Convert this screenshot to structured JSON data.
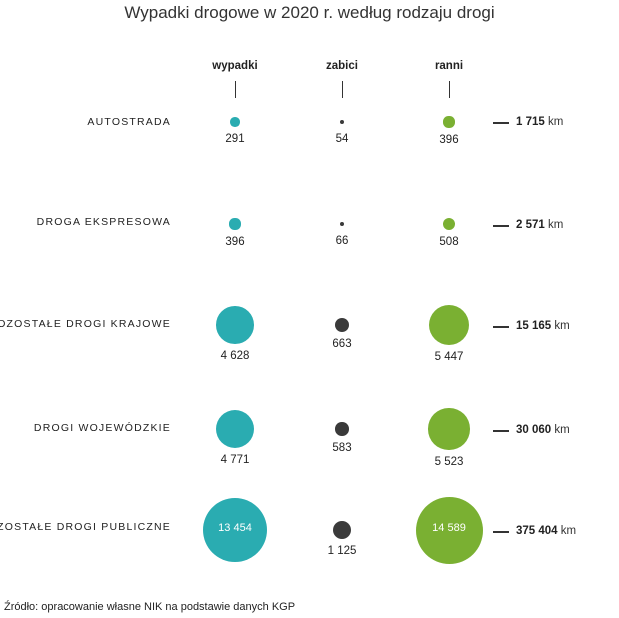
{
  "title": "Wypadki drogowe w 2020 r. według rodzaju drogi",
  "source": "Źródło: opracowanie własne NIK na podstawie danych KGP",
  "colors": {
    "wypadki": "#2aacb1",
    "zabici": "#3a3a3a",
    "ranni": "#7ab032"
  },
  "chart_data": {
    "type": "bubble-table",
    "title": "Wypadki drogowe w 2020 r. według rodzaju drogi",
    "columns": [
      "wypadki",
      "zabici",
      "ranni"
    ],
    "unit": "km",
    "rows": [
      {
        "label": "AUTOSTRADA",
        "wypadki": 291,
        "zabici": 54,
        "ranni": 396,
        "wypadki_text": "291",
        "zabici_text": "54",
        "ranni_text": "396",
        "length": "1 715",
        "length_value": 1715
      },
      {
        "label": "DROGA EKSPRESOWA",
        "wypadki": 396,
        "zabici": 66,
        "ranni": 508,
        "wypadki_text": "396",
        "zabici_text": "66",
        "ranni_text": "508",
        "length": "2 571",
        "length_value": 2571
      },
      {
        "label": "POZOSTAŁE DROGI KRAJOWE",
        "wypadki": 4628,
        "zabici": 663,
        "ranni": 5447,
        "wypadki_text": "4 628",
        "zabici_text": "663",
        "ranni_text": "5 447",
        "length": "15 165",
        "length_value": 15165
      },
      {
        "label": "DROGI WOJEWÓDZKIE",
        "wypadki": 4771,
        "zabici": 583,
        "ranni": 5523,
        "wypadki_text": "4 771",
        "zabici_text": "583",
        "ranni_text": "5 523",
        "length": "30 060",
        "length_value": 30060
      },
      {
        "label": "POZOSTAŁE DROGI PUBLICZNE",
        "wypadki": 13454,
        "zabici": 1125,
        "ranni": 14589,
        "wypadki_text": "13 454",
        "zabici_text": "1 125",
        "ranni_text": "14 589",
        "length": "375 404",
        "length_value": 375404
      }
    ]
  }
}
